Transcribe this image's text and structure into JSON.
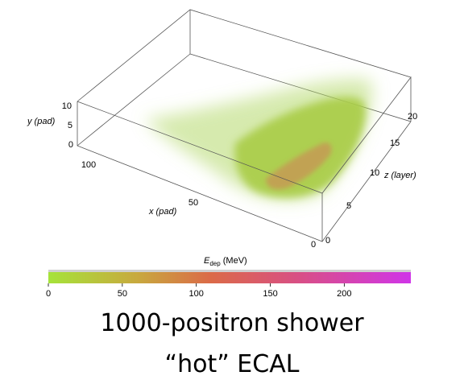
{
  "figure": {
    "caption_line1": "1000-positron shower",
    "caption_line2": "“hot” ECAL"
  },
  "axes": {
    "x": {
      "label": "x (pad)",
      "ticks": [
        "100",
        "50",
        "0"
      ]
    },
    "y": {
      "label": "y (pad)",
      "ticks": [
        "10",
        "5",
        "0"
      ]
    },
    "z": {
      "label": "z (layer)",
      "ticks": [
        "0",
        "5",
        "10",
        "15",
        "20"
      ]
    }
  },
  "colorbar": {
    "label_main": "E",
    "label_sub": "dep",
    "label_unit": " (MeV)",
    "ticks": [
      "0",
      "50",
      "100",
      "150",
      "200"
    ],
    "range": [
      0,
      245
    ],
    "stops": [
      {
        "value": 0,
        "color": "#a6e33a"
      },
      {
        "value": 60,
        "color": "#c8a93e"
      },
      {
        "value": 110,
        "color": "#db6a48"
      },
      {
        "value": 170,
        "color": "#d84f86"
      },
      {
        "value": 245,
        "color": "#d035e8"
      }
    ]
  },
  "colors": {
    "shower_low": "#b5d96b",
    "shower_core": "#a8cc45",
    "shower_hot": "#d17e55",
    "box_edge": "#555555"
  }
}
